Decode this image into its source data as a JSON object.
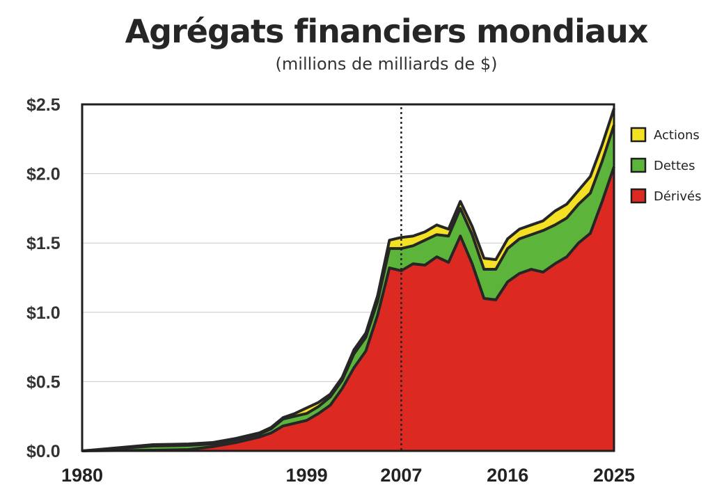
{
  "chart_data": {
    "type": "area",
    "title": "Agrégats financiers mondiaux",
    "subtitle": "(millions de milliards de $)",
    "stacked": true,
    "x": [
      1980,
      1986,
      1989,
      1991,
      1993,
      1995,
      1996,
      1997,
      1998,
      1999,
      2000,
      2001,
      2002,
      2003,
      2004,
      2005,
      2006,
      2007,
      2008,
      2009,
      2010,
      2011,
      2012,
      2013,
      2014,
      2015,
      2016,
      2017,
      2018,
      2019,
      2020,
      2021,
      2022,
      2023,
      2024,
      2025
    ],
    "series": [
      {
        "name": "Dérivés",
        "color": "#dc2a22",
        "values": [
          0.0,
          0.005,
          0.01,
          0.03,
          0.06,
          0.1,
          0.13,
          0.18,
          0.2,
          0.22,
          0.27,
          0.33,
          0.45,
          0.6,
          0.72,
          0.98,
          1.32,
          1.3,
          1.35,
          1.34,
          1.4,
          1.36,
          1.55,
          1.35,
          1.1,
          1.09,
          1.22,
          1.28,
          1.31,
          1.29,
          1.35,
          1.4,
          1.5,
          1.57,
          1.8,
          2.05
        ]
      },
      {
        "name": "Dettes",
        "color": "#5db43b",
        "values": [
          0.0,
          0.03,
          0.03,
          0.02,
          0.02,
          0.02,
          0.03,
          0.05,
          0.05,
          0.05,
          0.05,
          0.06,
          0.06,
          0.1,
          0.1,
          0.1,
          0.14,
          0.16,
          0.13,
          0.18,
          0.16,
          0.19,
          0.2,
          0.21,
          0.21,
          0.22,
          0.24,
          0.25,
          0.25,
          0.3,
          0.28,
          0.28,
          0.28,
          0.29,
          0.29,
          0.3
        ]
      },
      {
        "name": "Actions",
        "color": "#f4e124",
        "values": [
          0.0,
          0.01,
          0.01,
          0.01,
          0.01,
          0.01,
          0.01,
          0.01,
          0.02,
          0.04,
          0.03,
          0.02,
          0.02,
          0.03,
          0.03,
          0.04,
          0.06,
          0.08,
          0.07,
          0.06,
          0.07,
          0.05,
          0.05,
          0.06,
          0.08,
          0.07,
          0.07,
          0.07,
          0.07,
          0.07,
          0.1,
          0.1,
          0.1,
          0.12,
          0.12,
          0.12
        ]
      }
    ],
    "ylim": [
      0.0,
      2.5
    ],
    "xlim": [
      1980,
      2025
    ],
    "y_tick_labels": [
      "$0.0",
      "$0.5",
      "$1.0",
      "$1.5",
      "$2.0",
      "$2.5"
    ],
    "x_tick_labels": [
      "1980",
      "1999",
      "2007",
      "2016",
      "2025"
    ],
    "y_ticks": [
      0.0,
      0.5,
      1.0,
      1.5,
      2.0,
      2.5
    ],
    "x_ticks": [
      1980,
      1999,
      2007,
      2016,
      2025
    ],
    "marker_line_x": 2007,
    "grid": "horizontal",
    "legend_position": "right",
    "legend_order": [
      "Actions",
      "Dettes",
      "Dérivés"
    ]
  }
}
